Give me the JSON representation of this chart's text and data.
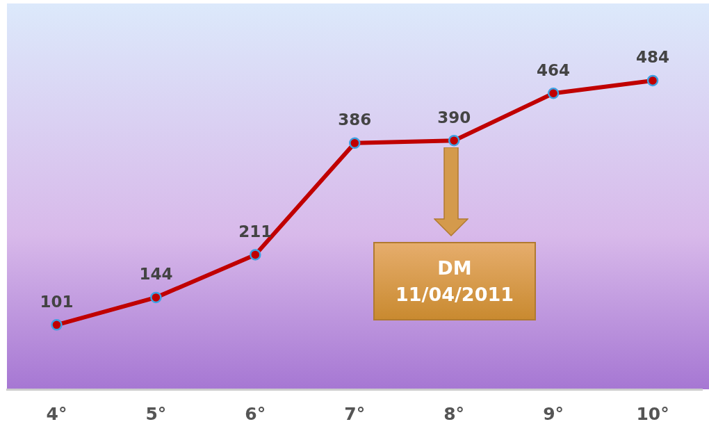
{
  "chart_data": {
    "type": "line",
    "categories": [
      "4°",
      "5°",
      "6°",
      "7°",
      "8°",
      "9°",
      "10°"
    ],
    "series": [
      {
        "color": "#c00000",
        "values": [
          101,
          144,
          211,
          386,
          390,
          464,
          484
        ]
      }
    ],
    "tick_labels": "x",
    "grid": false,
    "legend": false,
    "marker": "circle",
    "line_style": "solid",
    "data_labels": true,
    "annotations": [
      "DM\n11/04/2011"
    ]
  }
}
